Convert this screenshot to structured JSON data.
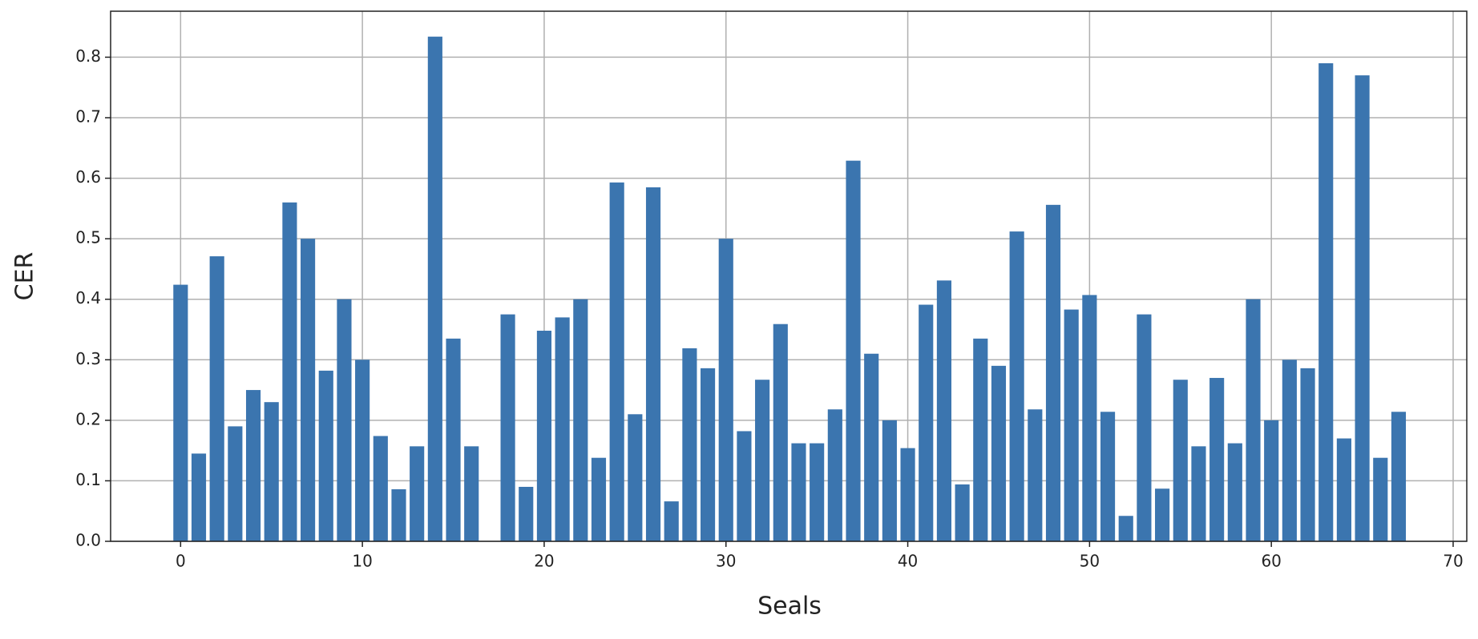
{
  "chart_data": {
    "type": "bar",
    "xlabel": "Seals",
    "ylabel": "CER",
    "x": [
      0,
      1,
      2,
      3,
      4,
      5,
      6,
      7,
      8,
      9,
      10,
      11,
      12,
      13,
      14,
      15,
      16,
      17,
      18,
      19,
      20,
      21,
      22,
      23,
      24,
      25,
      26,
      27,
      28,
      29,
      30,
      31,
      32,
      33,
      34,
      35,
      36,
      37,
      38,
      39,
      40,
      41,
      42,
      43,
      44,
      45,
      46,
      47,
      48,
      49,
      50,
      51,
      52,
      53,
      54,
      55,
      56,
      57,
      58,
      59,
      60,
      61,
      62,
      63,
      64,
      65,
      66,
      67
    ],
    "values": [
      0.424,
      0.145,
      0.471,
      0.19,
      0.25,
      0.23,
      0.56,
      0.5,
      0.282,
      0.4,
      0.3,
      0.174,
      0.086,
      0.157,
      0.834,
      0.335,
      0.157,
      0,
      0.375,
      0.09,
      0.348,
      0.37,
      0.4,
      0.138,
      0.593,
      0.21,
      0.585,
      0.066,
      0.319,
      0.286,
      0.5,
      0.182,
      0.267,
      0.359,
      0.162,
      0.162,
      0.218,
      0.629,
      0.31,
      0.2,
      0.154,
      0.391,
      0.431,
      0.094,
      0.335,
      0.29,
      0.512,
      0.218,
      0.556,
      0.383,
      0.407,
      0.214,
      0.042,
      0.375,
      0.087,
      0.267,
      0.157,
      0.27,
      0.162,
      0.4,
      0.2,
      0.3,
      0.286,
      0.79,
      0.17,
      0.77,
      0.138,
      0.214
    ],
    "color": "#3b75af",
    "bar_width": 0.8,
    "xlim": [
      -3.85,
      70.75
    ],
    "xticks": [
      0,
      10,
      20,
      30,
      40,
      50,
      60,
      70
    ],
    "ylim": [
      0,
      0.876
    ],
    "yticks": [
      {
        "value": 0,
        "label": "0.0"
      },
      0.1,
      0.2,
      0.3,
      0.4,
      0.5,
      0.6,
      0.7,
      0.8
    ],
    "grid": true
  }
}
